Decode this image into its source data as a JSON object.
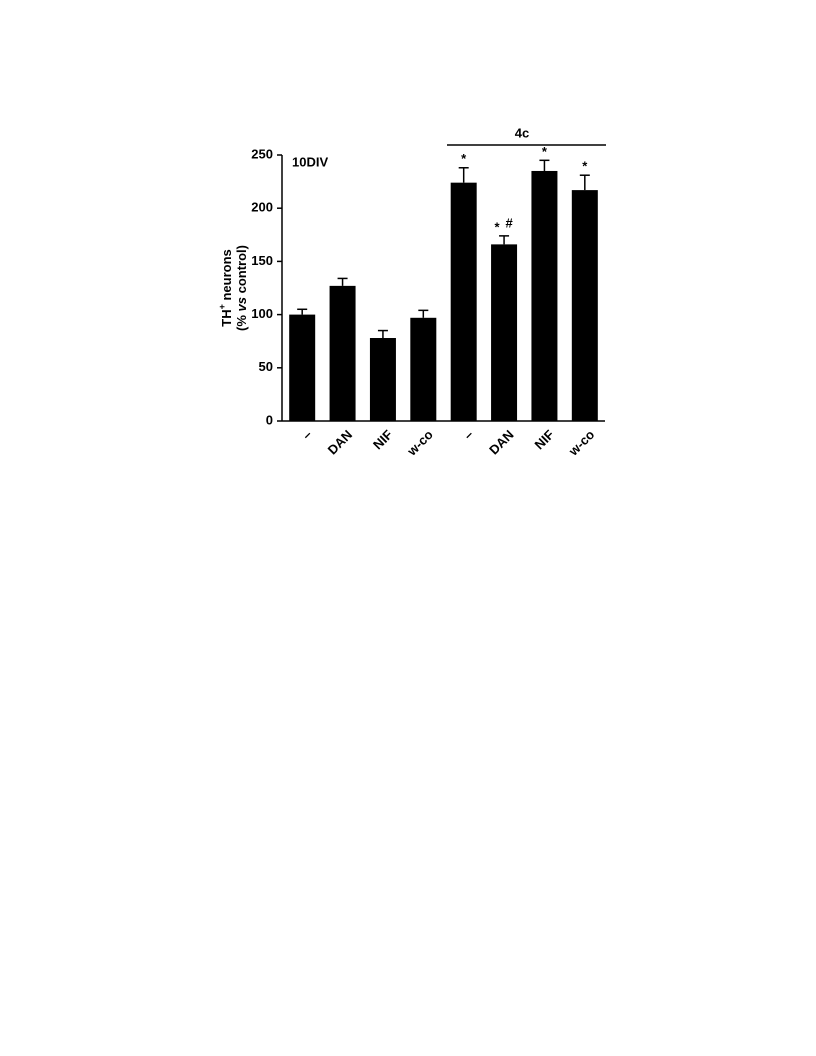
{
  "chart_data": {
    "type": "bar",
    "panel_label": "10DIV",
    "group_label": "4c",
    "ylabel": {
      "line1": {
        "main": "TH",
        "sup": "+",
        "rest": " neurons"
      },
      "line2": {
        "pre": "(% ",
        "italic": "vs",
        "post": " control)"
      }
    },
    "categories": [
      "–",
      "DAN",
      "NIF",
      "w-co",
      "–",
      "DAN",
      "NIF",
      "w-co"
    ],
    "values": [
      100,
      127,
      78,
      97,
      224,
      166,
      235,
      217
    ],
    "errors": [
      5,
      7,
      7,
      7,
      14,
      8,
      10,
      14
    ],
    "stars": [
      null,
      null,
      null,
      null,
      "*",
      "*",
      "*",
      "*"
    ],
    "hashes": [
      null,
      null,
      null,
      null,
      null,
      "#",
      null,
      null
    ],
    "color": "#000000",
    "ylim": [
      0,
      250
    ],
    "yticks": [
      0,
      50,
      100,
      150,
      200,
      250
    ]
  }
}
